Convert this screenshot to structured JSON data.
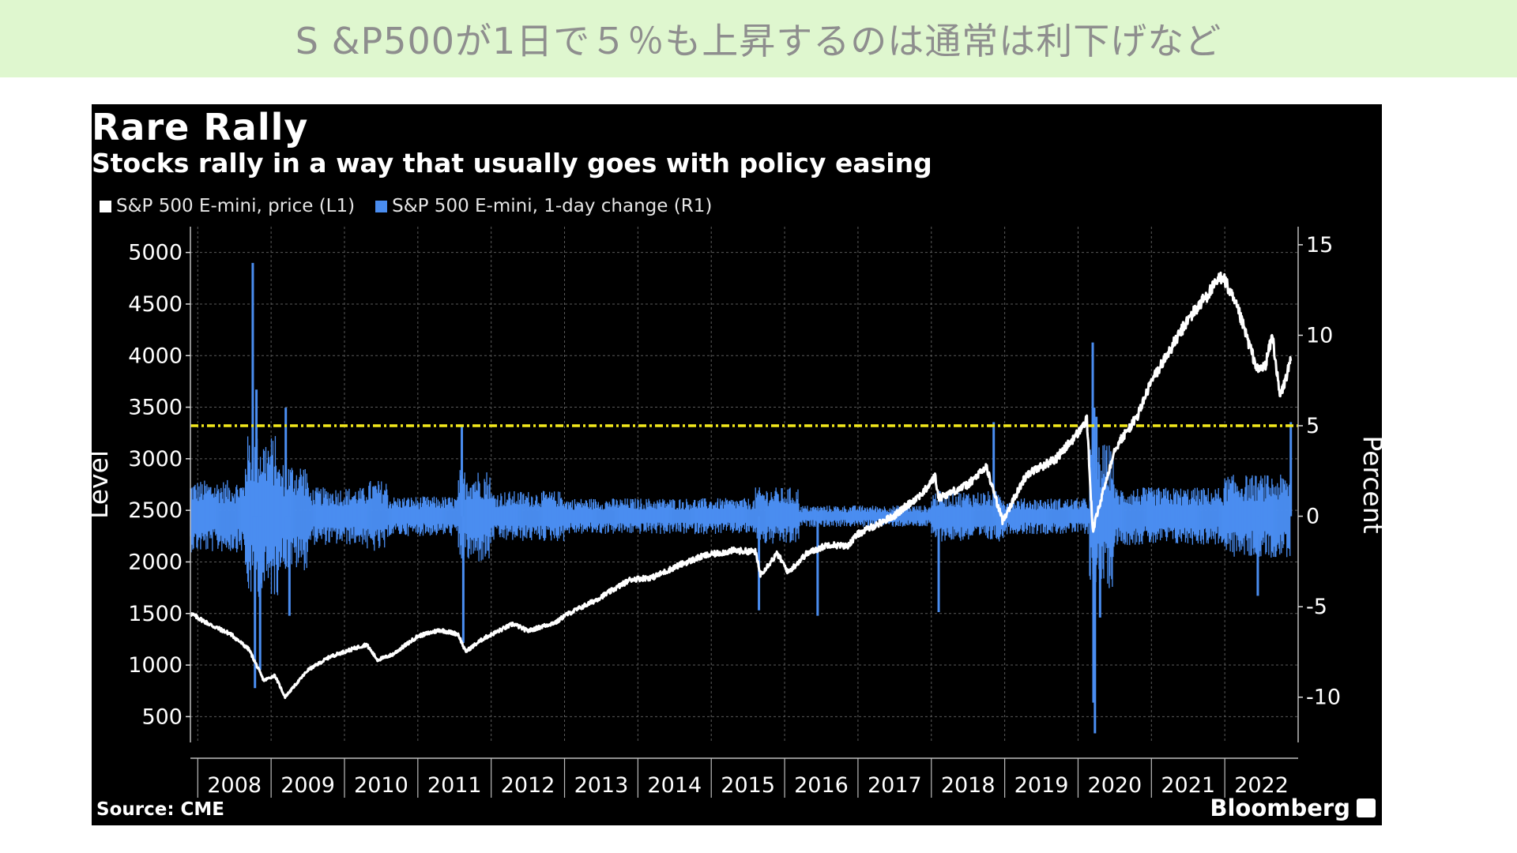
{
  "banner": {
    "text": "S &P500が1日で５％も上昇するのは通常は利下げなど"
  },
  "colors": {
    "banner_bg": "#dff7cf",
    "panel_bg": "#000000",
    "price": "#ffffff",
    "change": "#4a8df0",
    "threshold": "#f2e71b",
    "grid": "#5a5a5a"
  },
  "icons": {
    "brand": "bloomberg-chart-icon"
  },
  "chart_data": {
    "type": "line",
    "title": "Rare Rally",
    "subtitle": "Stocks rally in a way that usually goes with policy easing",
    "legend": [
      {
        "name": "S&P 500 E-mini, price  (L1)",
        "color": "#ffffff"
      },
      {
        "name": "S&P 500 E-mini, 1-day change  (R1)",
        "color": "#4a8df0"
      }
    ],
    "legend_position": "top-left",
    "left_axis": {
      "label": "Level",
      "ticks": [
        "5000",
        "4500",
        "4000",
        "3500",
        "3000",
        "2500",
        "2000",
        "1500",
        "1000",
        "500"
      ],
      "range": [
        250,
        5250
      ]
    },
    "right_axis": {
      "label": "Percent",
      "ticks": [
        "15",
        "10",
        "5",
        "0",
        "-5",
        "-10"
      ],
      "range": [
        -12.5,
        16
      ]
    },
    "x_axis": {
      "ticks": [
        "2008",
        "2009",
        "2010",
        "2011",
        "2012",
        "2013",
        "2014",
        "2015",
        "2016",
        "2017",
        "2018",
        "2019",
        "2020",
        "2021",
        "2022"
      ],
      "range": [
        2007.9,
        2023.0
      ]
    },
    "grid": true,
    "reference_line": {
      "axis": "right",
      "value": 5.0,
      "style": "dash-dot"
    },
    "series": [
      {
        "name": "S&P 500 E-mini, price  (L1)",
        "axis": "left",
        "x": [
          2007.9,
          2008.2,
          2008.45,
          2008.7,
          2008.9,
          2009.05,
          2009.19,
          2009.5,
          2009.8,
          2010.0,
          2010.3,
          2010.45,
          2010.65,
          2011.0,
          2011.3,
          2011.55,
          2011.65,
          2011.9,
          2012.3,
          2012.5,
          2012.9,
          2013.0,
          2013.4,
          2013.9,
          2014.2,
          2014.6,
          2014.9,
          2015.3,
          2015.6,
          2015.67,
          2015.9,
          2016.05,
          2016.3,
          2016.6,
          2016.85,
          2017.0,
          2017.5,
          2017.9,
          2018.05,
          2018.1,
          2018.5,
          2018.75,
          2018.97,
          2019.3,
          2019.7,
          2020.0,
          2020.12,
          2020.2,
          2020.5,
          2020.8,
          2021.0,
          2021.5,
          2021.97,
          2022.2,
          2022.45,
          2022.55,
          2022.65,
          2022.75,
          2022.8,
          2022.9
        ],
        "y": [
          1500,
          1380,
          1300,
          1150,
          850,
          900,
          690,
          950,
          1080,
          1130,
          1200,
          1050,
          1100,
          1280,
          1340,
          1300,
          1130,
          1260,
          1400,
          1330,
          1420,
          1480,
          1620,
          1830,
          1850,
          1980,
          2060,
          2110,
          2100,
          1880,
          2080,
          1900,
          2080,
          2170,
          2150,
          2270,
          2450,
          2680,
          2830,
          2620,
          2750,
          2920,
          2400,
          2850,
          3000,
          3250,
          3380,
          2300,
          3100,
          3400,
          3750,
          4350,
          4780,
          4400,
          3850,
          3900,
          4200,
          3600,
          3700,
          3950
        ]
      },
      {
        "name": "S&P 500 E-mini, 1-day change  (R1)",
        "axis": "right",
        "style": "bars",
        "x": [
          2008.75,
          2008.78,
          2008.8,
          2008.85,
          2009.2,
          2009.25,
          2011.6,
          2011.62,
          2015.65,
          2016.45,
          2018.1,
          2018.85,
          2019.0,
          2020.2,
          2020.21,
          2020.22,
          2020.23,
          2020.25,
          2020.3,
          2022.45,
          2022.9
        ],
        "y": [
          14,
          -9.5,
          7,
          -8.5,
          6,
          -5.5,
          5,
          -7,
          -5.2,
          -5.5,
          -5.3,
          5.2,
          -0.8,
          9.6,
          -10.3,
          6,
          -12,
          5.5,
          -5.6,
          -4.4,
          5.2
        ]
      }
    ]
  },
  "source": "Source: CME",
  "brand": "Bloomberg"
}
